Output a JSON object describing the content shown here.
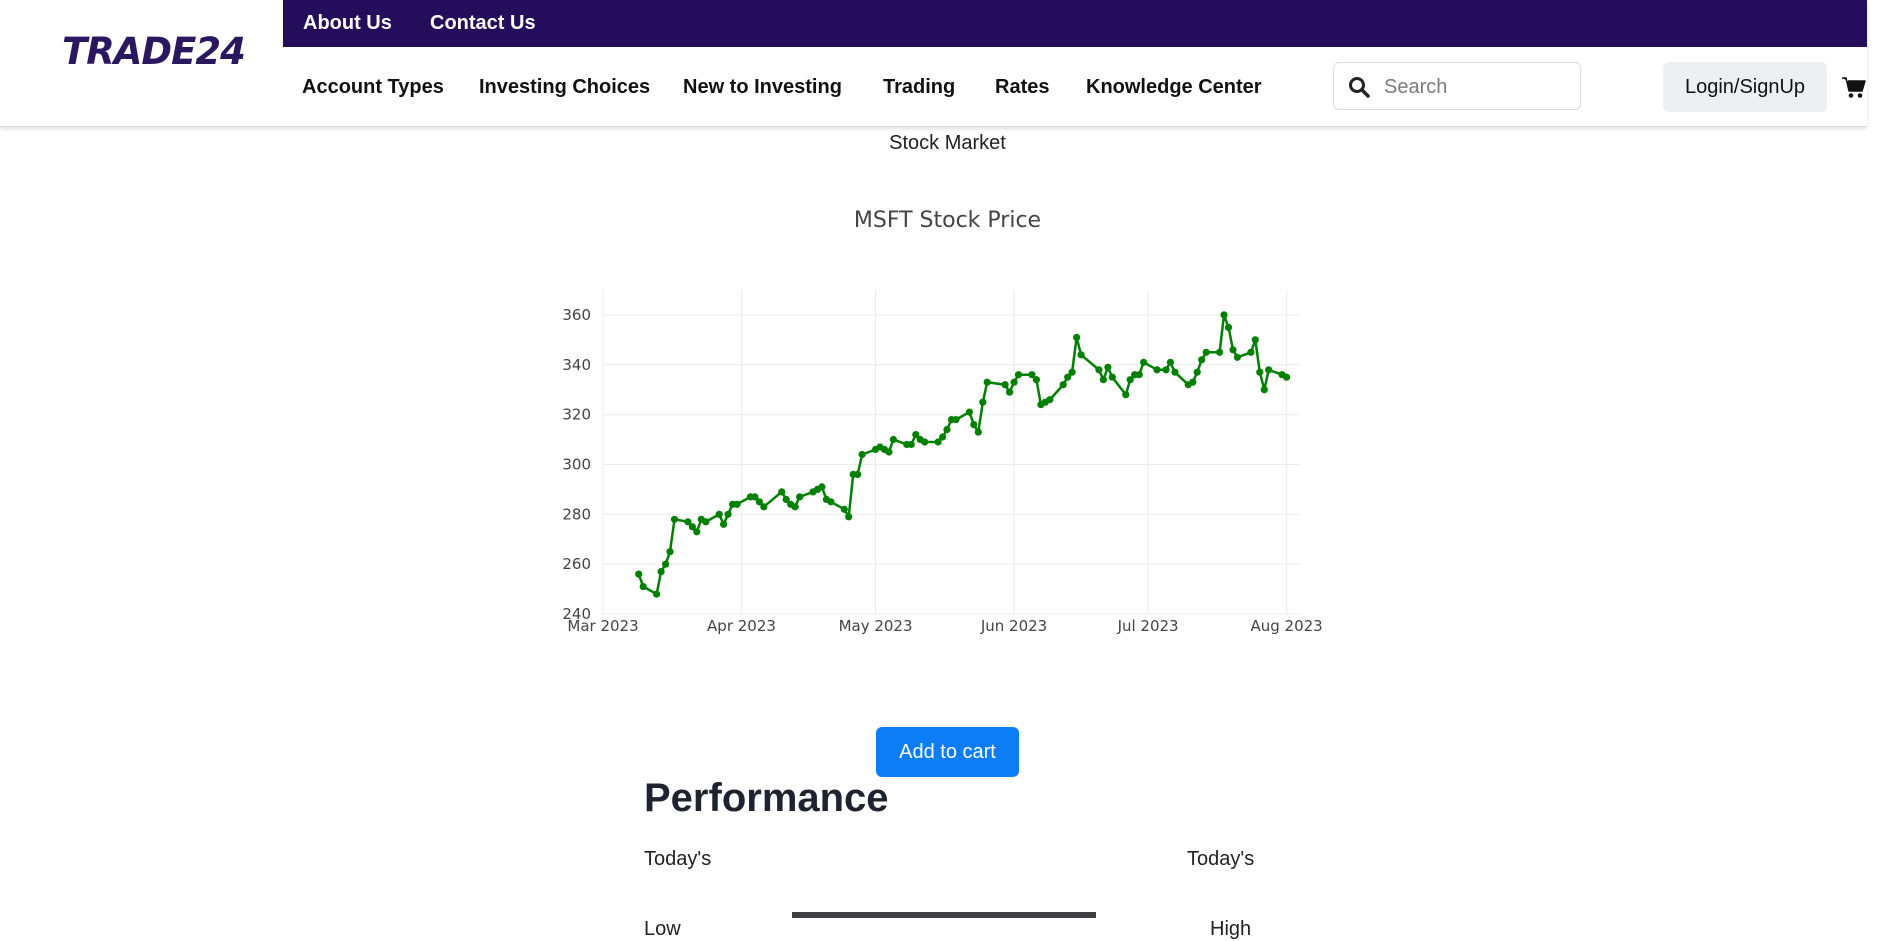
{
  "header": {
    "logo": "TRADE24",
    "top_links": [
      "About Us",
      "Contact Us"
    ],
    "nav": [
      "Account Types",
      "Investing Choices",
      "New to Investing",
      "Trading",
      "Rates",
      "Knowledge Center"
    ],
    "search_placeholder": "Search",
    "login_label": "Login/SignUp",
    "icons": {
      "search": "search-icon",
      "cart": "cart-icon"
    },
    "colors": {
      "topbar": "#240d5b",
      "logo": "#2b1660"
    }
  },
  "page": {
    "heading": "Stock Market",
    "add_to_cart": "Add to cart"
  },
  "chart_data": {
    "type": "line",
    "title": "MSFT Stock Price",
    "xlabel": "",
    "ylabel": "",
    "color": "#008000",
    "grid": true,
    "ylim": [
      240,
      370
    ],
    "xlim": [
      "2023-03-01",
      "2023-08-04"
    ],
    "x_ticks": [
      "Mar 2023",
      "Apr 2023",
      "May 2023",
      "Jun 2023",
      "Jul 2023",
      "Aug 2023"
    ],
    "x_tick_dates": [
      "2023-03-01",
      "2023-04-01",
      "2023-05-01",
      "2023-06-01",
      "2023-07-01",
      "2023-08-01"
    ],
    "y_ticks": [
      240,
      260,
      280,
      300,
      320,
      340,
      360
    ],
    "points": [
      [
        "2023-03-09",
        256
      ],
      [
        "2023-03-10",
        251
      ],
      [
        "2023-03-13",
        248
      ],
      [
        "2023-03-14",
        257
      ],
      [
        "2023-03-15",
        260
      ],
      [
        "2023-03-16",
        265
      ],
      [
        "2023-03-17",
        278
      ],
      [
        "2023-03-20",
        277
      ],
      [
        "2023-03-21",
        275
      ],
      [
        "2023-03-22",
        273
      ],
      [
        "2023-03-23",
        278
      ],
      [
        "2023-03-24",
        277
      ],
      [
        "2023-03-27",
        280
      ],
      [
        "2023-03-28",
        276
      ],
      [
        "2023-03-29",
        280
      ],
      [
        "2023-03-30",
        284
      ],
      [
        "2023-03-31",
        284
      ],
      [
        "2023-04-03",
        287
      ],
      [
        "2023-04-04",
        287
      ],
      [
        "2023-04-05",
        285
      ],
      [
        "2023-04-06",
        283
      ],
      [
        "2023-04-10",
        289
      ],
      [
        "2023-04-11",
        286
      ],
      [
        "2023-04-12",
        284
      ],
      [
        "2023-04-13",
        283
      ],
      [
        "2023-04-14",
        287
      ],
      [
        "2023-04-17",
        289
      ],
      [
        "2023-04-18",
        290
      ],
      [
        "2023-04-19",
        291
      ],
      [
        "2023-04-20",
        286
      ],
      [
        "2023-04-21",
        285
      ],
      [
        "2023-04-24",
        282
      ],
      [
        "2023-04-25",
        279
      ],
      [
        "2023-04-26",
        296
      ],
      [
        "2023-04-27",
        296
      ],
      [
        "2023-04-28",
        304
      ],
      [
        "2023-05-01",
        306
      ],
      [
        "2023-05-02",
        307
      ],
      [
        "2023-05-03",
        306
      ],
      [
        "2023-05-04",
        305
      ],
      [
        "2023-05-05",
        310
      ],
      [
        "2023-05-08",
        308
      ],
      [
        "2023-05-09",
        308
      ],
      [
        "2023-05-10",
        312
      ],
      [
        "2023-05-11",
        310
      ],
      [
        "2023-05-12",
        309
      ],
      [
        "2023-05-15",
        309
      ],
      [
        "2023-05-16",
        311
      ],
      [
        "2023-05-17",
        314
      ],
      [
        "2023-05-18",
        318
      ],
      [
        "2023-05-19",
        318
      ],
      [
        "2023-05-22",
        321
      ],
      [
        "2023-05-23",
        316
      ],
      [
        "2023-05-24",
        313
      ],
      [
        "2023-05-25",
        325
      ],
      [
        "2023-05-26",
        333
      ],
      [
        "2023-05-30",
        332
      ],
      [
        "2023-05-31",
        329
      ],
      [
        "2023-06-01",
        333
      ],
      [
        "2023-06-02",
        336
      ],
      [
        "2023-06-05",
        336
      ],
      [
        "2023-06-06",
        334
      ],
      [
        "2023-06-07",
        324
      ],
      [
        "2023-06-08",
        325
      ],
      [
        "2023-06-09",
        326
      ],
      [
        "2023-06-12",
        332
      ],
      [
        "2023-06-13",
        335
      ],
      [
        "2023-06-14",
        337
      ],
      [
        "2023-06-15",
        351
      ],
      [
        "2023-06-16",
        344
      ],
      [
        "2023-06-20",
        338
      ],
      [
        "2023-06-21",
        334
      ],
      [
        "2023-06-22",
        339
      ],
      [
        "2023-06-23",
        335
      ],
      [
        "2023-06-26",
        328
      ],
      [
        "2023-06-27",
        334
      ],
      [
        "2023-06-28",
        336
      ],
      [
        "2023-06-29",
        336
      ],
      [
        "2023-06-30",
        341
      ],
      [
        "2023-07-03",
        338
      ],
      [
        "2023-07-05",
        338
      ],
      [
        "2023-07-06",
        341
      ],
      [
        "2023-07-07",
        337
      ],
      [
        "2023-07-10",
        332
      ],
      [
        "2023-07-11",
        333
      ],
      [
        "2023-07-12",
        337
      ],
      [
        "2023-07-13",
        342
      ],
      [
        "2023-07-14",
        345
      ],
      [
        "2023-07-17",
        345
      ],
      [
        "2023-07-18",
        360
      ],
      [
        "2023-07-19",
        355
      ],
      [
        "2023-07-20",
        346
      ],
      [
        "2023-07-21",
        343
      ],
      [
        "2023-07-24",
        345
      ],
      [
        "2023-07-25",
        350
      ],
      [
        "2023-07-26",
        337
      ],
      [
        "2023-07-27",
        330
      ],
      [
        "2023-07-28",
        338
      ],
      [
        "2023-07-31",
        336
      ],
      [
        "2023-08-01",
        335
      ]
    ]
  },
  "performance": {
    "title": "Performance",
    "labels": {
      "todays_left": "Today's",
      "todays_right": "Today's",
      "low": "Low",
      "high": "High"
    }
  }
}
